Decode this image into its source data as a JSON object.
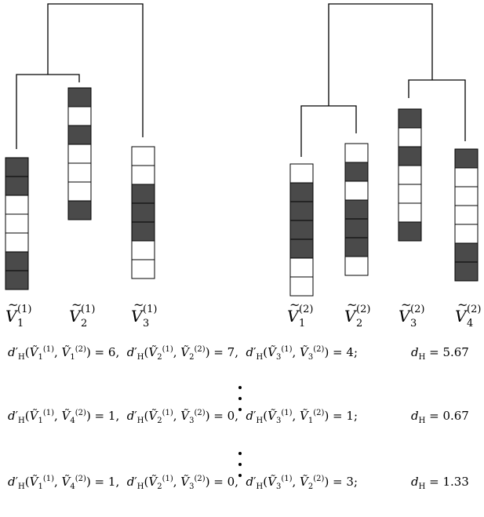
{
  "left_tree": {
    "labels": [
      {
        "sym": "V",
        "sub": "1",
        "sup": "(1)"
      },
      {
        "sym": "V",
        "sub": "2",
        "sup": "(1)"
      },
      {
        "sym": "V",
        "sub": "3",
        "sup": "(1)"
      }
    ],
    "vectors": [
      [
        1,
        1,
        0,
        0,
        0,
        1,
        1
      ],
      [
        1,
        0,
        1,
        0,
        0,
        0,
        1
      ],
      [
        0,
        0,
        1,
        1,
        1,
        0,
        0
      ]
    ]
  },
  "right_tree": {
    "labels": [
      {
        "sym": "V",
        "sub": "1",
        "sup": "(2)"
      },
      {
        "sym": "V",
        "sub": "2",
        "sup": "(2)"
      },
      {
        "sym": "V",
        "sub": "3",
        "sup": "(2)"
      },
      {
        "sym": "V",
        "sub": "4",
        "sup": "(2)"
      }
    ],
    "vectors": [
      [
        0,
        1,
        1,
        1,
        1,
        0,
        0
      ],
      [
        0,
        1,
        0,
        1,
        1,
        1,
        0
      ],
      [
        1,
        0,
        1,
        0,
        0,
        0,
        1
      ],
      [
        1,
        0,
        0,
        0,
        0,
        1,
        1
      ]
    ]
  },
  "equations": [
    {
      "pairs": [
        [
          "1",
          "1",
          "6"
        ],
        [
          "2",
          "2",
          "7"
        ],
        [
          "3",
          "3",
          "4"
        ]
      ],
      "result": "5.67"
    },
    {
      "pairs": [
        [
          "1",
          "4",
          "1"
        ],
        [
          "2",
          "3",
          "0"
        ],
        [
          "3",
          "1",
          "1"
        ]
      ],
      "result": "0.67"
    },
    {
      "pairs": [
        [
          "1",
          "4",
          "1"
        ],
        [
          "2",
          "3",
          "0"
        ],
        [
          "3",
          "2",
          "3"
        ]
      ],
      "result": "1.33"
    }
  ],
  "colors": {
    "filled": "#4a4a4a",
    "empty": "#ffffff",
    "stroke": "#000000"
  }
}
